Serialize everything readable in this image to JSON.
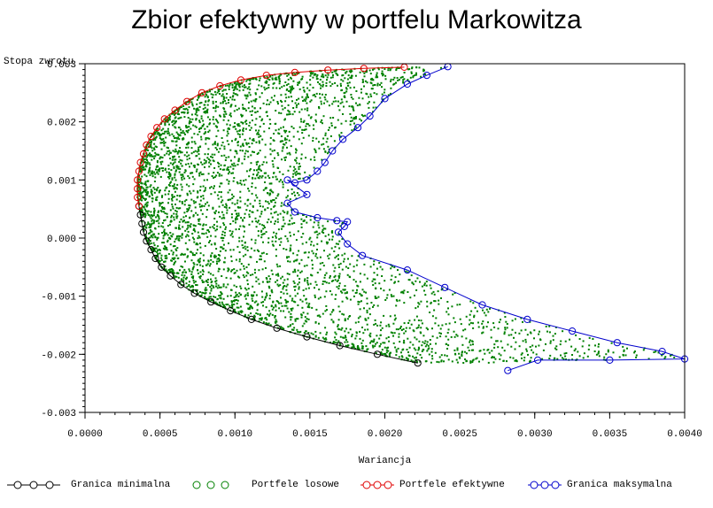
{
  "chart_data": {
    "type": "scatter",
    "title": "Zbior efektywny w portfelu Markowitza",
    "xlabel": "Wariancja",
    "ylabel": "Stopa zwrotu",
    "xlim": [
      0.0,
      0.004
    ],
    "ylim": [
      -0.003,
      0.003
    ],
    "x_ticks": [
      "0.0000",
      "0.0005",
      "0.0010",
      "0.0015",
      "0.0020",
      "0.0025",
      "0.0030",
      "0.0035",
      "0.0040"
    ],
    "y_ticks": [
      "-0.003",
      "-0.002",
      "-0.001",
      "0.000",
      "0.001",
      "0.002",
      "0.003"
    ],
    "legend_position": "bottom",
    "colors": {
      "min": "#000000",
      "random": "#008000",
      "efficient": "#e00000",
      "max": "#0000cc"
    },
    "series": [
      {
        "name": "Granica minimalna",
        "marker": "circle",
        "x": [
          0.00036,
          0.00037,
          0.00038,
          0.00039,
          0.00041,
          0.00044,
          0.00047,
          0.00051,
          0.00057,
          0.00064,
          0.00073,
          0.00084,
          0.00097,
          0.00111,
          0.00128,
          0.00148,
          0.0017,
          0.00195,
          0.00222
        ],
        "y": [
          0.00055,
          0.0004,
          0.00025,
          0.0001,
          -5e-05,
          -0.0002,
          -0.00035,
          -0.0005,
          -0.00065,
          -0.0008,
          -0.00095,
          -0.0011,
          -0.00125,
          -0.0014,
          -0.00155,
          -0.0017,
          -0.00185,
          -0.002,
          -0.00215
        ]
      },
      {
        "name": "Portfele losowe",
        "marker": "dot"
      },
      {
        "name": "Portfele efektywne",
        "marker": "circle",
        "x": [
          0.00036,
          0.00035,
          0.00035,
          0.00035,
          0.00036,
          0.00037,
          0.00039,
          0.00041,
          0.00044,
          0.00048,
          0.00053,
          0.0006,
          0.00068,
          0.00078,
          0.0009,
          0.00104,
          0.00121,
          0.0014,
          0.00162,
          0.00186,
          0.00213
        ],
        "y": [
          0.00055,
          0.0007,
          0.00085,
          0.001,
          0.00115,
          0.0013,
          0.00145,
          0.0016,
          0.00175,
          0.0019,
          0.00205,
          0.0022,
          0.00235,
          0.0025,
          0.00262,
          0.00272,
          0.0028,
          0.00285,
          0.00289,
          0.00292,
          0.00294
        ]
      },
      {
        "name": "Granica maksymalna",
        "marker": "circle",
        "x": [
          0.00242,
          0.00228,
          0.00215,
          0.002,
          0.0019,
          0.00182,
          0.00172,
          0.00165,
          0.0016,
          0.00155,
          0.00148,
          0.0014,
          0.00135,
          0.00148,
          0.00135,
          0.0014,
          0.00155,
          0.00168,
          0.00175,
          0.00173,
          0.00169,
          0.00175,
          0.00185,
          0.00215,
          0.0024,
          0.00265,
          0.00295,
          0.00325,
          0.00355,
          0.00385,
          0.004,
          0.0035,
          0.00302,
          0.00282
        ],
        "y": [
          0.00295,
          0.0028,
          0.00265,
          0.0024,
          0.0021,
          0.0019,
          0.0017,
          0.0015,
          0.0013,
          0.00115,
          0.001,
          0.00095,
          0.001,
          0.00075,
          0.0006,
          0.00045,
          0.00035,
          0.0003,
          0.00028,
          0.0002,
          0.0001,
          -0.0001,
          -0.0003,
          -0.00055,
          -0.00085,
          -0.00115,
          -0.0014,
          -0.0016,
          -0.0018,
          -0.00195,
          -0.00208,
          -0.0021,
          -0.0021,
          -0.00228
        ]
      }
    ]
  }
}
